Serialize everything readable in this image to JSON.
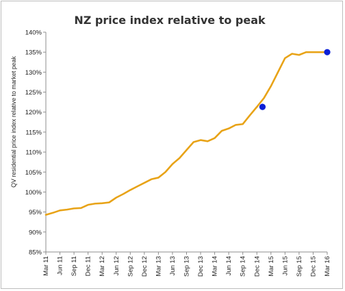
{
  "chart_data": {
    "type": "line",
    "title": "NZ price index relative to peak",
    "xlabel": "",
    "ylabel": "QV residential price index relative to market peak",
    "ylim": [
      85,
      140
    ],
    "ytick_step": 5,
    "ytick_labels": [
      "85%",
      "90%",
      "95%",
      "100%",
      "105%",
      "110%",
      "115%",
      "120%",
      "125%",
      "130%",
      "135%",
      "140%"
    ],
    "xtick_labels": [
      "Mar 11",
      "Jun 11",
      "Sep 11",
      "Dec 11",
      "Mar 12",
      "Jun 12",
      "Sep 12",
      "Dec 12",
      "Mar 13",
      "Jun 13",
      "Sep 13",
      "Dec 13",
      "Mar 14",
      "Jun 14",
      "Sep 14",
      "Dec 14",
      "Mar 15",
      "Jun 15",
      "Sep 15",
      "Dec 15",
      "Mar 16"
    ],
    "grid": false,
    "legend": "none",
    "line_color": "#E8A317",
    "marker_color": "#0A1FD6",
    "series": [
      {
        "x": [
          0,
          0.5,
          1,
          1.5,
          2,
          2.5,
          3,
          3.5,
          4,
          4.5,
          5,
          5.5,
          6,
          6.5,
          7,
          7.5,
          8,
          8.5,
          9,
          9.5,
          10,
          10.5,
          11,
          11.5,
          12,
          12.5,
          13,
          13.5,
          14,
          14.5,
          15,
          15.5,
          16,
          16.5,
          17,
          17.5,
          18,
          18.5,
          19,
          19.5,
          20
        ],
        "values": [
          94.3,
          94.8,
          95.4,
          95.6,
          95.9,
          96.0,
          96.8,
          97.1,
          97.2,
          97.4,
          98.6,
          99.5,
          100.5,
          101.4,
          102.3,
          103.2,
          103.6,
          105.0,
          107.0,
          108.5,
          110.5,
          112.5,
          113.0,
          112.7,
          113.5,
          115.3,
          115.9,
          116.8,
          117.0,
          119.2,
          121.3,
          123.5,
          126.5,
          130.0,
          133.5,
          134.6,
          134.3,
          135.0,
          135.0,
          135.0,
          135.0
        ],
        "markers": [
          {
            "x": 15.4,
            "value": 121.3
          },
          {
            "x": 20.0,
            "value": 135.0
          }
        ]
      }
    ]
  }
}
